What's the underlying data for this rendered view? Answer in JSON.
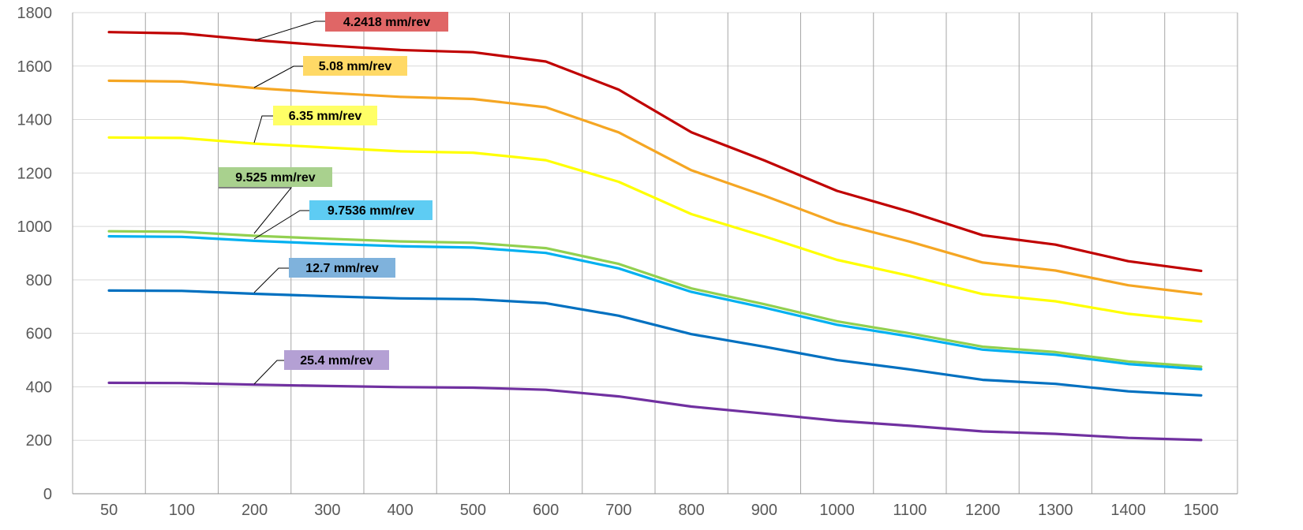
{
  "chart_data": {
    "type": "line",
    "x": [
      "50",
      "100",
      "200",
      "300",
      "400",
      "500",
      "600",
      "700",
      "800",
      "900",
      "1000",
      "1100",
      "1200",
      "1300",
      "1400",
      "1500"
    ],
    "ylim": [
      0,
      1800
    ],
    "yticks": [
      "0",
      "200",
      "400",
      "600",
      "800",
      "1000",
      "1200",
      "1400",
      "1600",
      "1800"
    ],
    "grid": true,
    "series": [
      {
        "name": "4.2418 mm/rev",
        "color": "#C00000",
        "label_bg": "#E06666",
        "values": [
          1727,
          1722,
          1697,
          1677,
          1660,
          1652,
          1617,
          1512,
          1352,
          1247,
          1133,
          1055,
          967,
          932,
          870,
          834
        ]
      },
      {
        "name": "5.08 mm/rev",
        "color": "#F5A623",
        "label_bg": "#FFD966",
        "values": [
          1545,
          1542,
          1518,
          1500,
          1485,
          1477,
          1446,
          1352,
          1210,
          1115,
          1013,
          943,
          865,
          835,
          780,
          747
        ]
      },
      {
        "name": "6.35 mm/rev",
        "color": "#FFFF00",
        "label_bg": "#FFFF66",
        "values": [
          1333,
          1331,
          1310,
          1295,
          1281,
          1276,
          1248,
          1167,
          1046,
          963,
          875,
          815,
          747,
          720,
          673,
          645
        ]
      },
      {
        "name": "9.525 mm/rev",
        "color": "#92D050",
        "label_bg": "#A9D18E",
        "values": [
          982,
          980,
          965,
          954,
          944,
          939,
          919,
          860,
          768,
          709,
          645,
          600,
          550,
          530,
          495,
          475
        ]
      },
      {
        "name": "9.7536 mm/rev",
        "color": "#00B0F0",
        "label_bg": "#5ECCF3",
        "values": [
          963,
          961,
          946,
          935,
          926,
          921,
          901,
          843,
          755,
          696,
          632,
          588,
          539,
          520,
          485,
          466
        ]
      },
      {
        "name": "12.7 mm/rev",
        "color": "#0070C0",
        "label_bg": "#7FB2DC",
        "values": [
          760,
          759,
          748,
          739,
          731,
          728,
          713,
          666,
          597,
          550,
          500,
          465,
          426,
          411,
          383,
          368
        ]
      },
      {
        "name": "25.4 mm/rev",
        "color": "#7030A0",
        "label_bg": "#B4A0D4",
        "values": [
          415,
          414,
          408,
          403,
          399,
          397,
          389,
          364,
          326,
          300,
          273,
          254,
          233,
          224,
          209,
          201
        ]
      }
    ]
  }
}
